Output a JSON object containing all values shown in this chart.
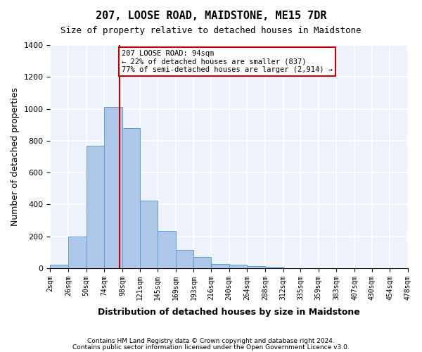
{
  "title": "207, LOOSE ROAD, MAIDSTONE, ME15 7DR",
  "subtitle": "Size of property relative to detached houses in Maidstone",
  "xlabel": "Distribution of detached houses by size in Maidstone",
  "ylabel": "Number of detached properties",
  "bar_color": "#aec6e8",
  "bar_edge_color": "#5a9fd4",
  "bar_counts": [
    20,
    200,
    770,
    1010,
    880,
    425,
    235,
    115,
    70,
    25,
    20,
    12,
    10,
    0,
    0,
    0,
    0,
    0,
    0,
    0
  ],
  "bin_labels": [
    "2sqm",
    "26sqm",
    "50sqm",
    "74sqm",
    "98sqm",
    "121sqm",
    "145sqm",
    "169sqm",
    "193sqm",
    "216sqm",
    "240sqm",
    "264sqm",
    "288sqm",
    "312sqm",
    "335sqm",
    "359sqm",
    "383sqm",
    "407sqm",
    "430sqm",
    "454sqm",
    "478sqm"
  ],
  "bin_edges": [
    2,
    26,
    50,
    74,
    98,
    121,
    145,
    169,
    193,
    216,
    240,
    264,
    288,
    312,
    335,
    359,
    383,
    407,
    430,
    454,
    478
  ],
  "property_value": 94,
  "vline_color": "#cc0000",
  "annotation_text": "207 LOOSE ROAD: 94sqm\n← 22% of detached houses are smaller (837)\n77% of semi-detached houses are larger (2,914) →",
  "annotation_box_color": "#cc0000",
  "ylim": [
    0,
    1400
  ],
  "yticks": [
    0,
    200,
    400,
    600,
    800,
    1000,
    1200,
    1400
  ],
  "background_color": "#eef3fb",
  "grid_color": "#ffffff",
  "footer_line1": "Contains HM Land Registry data © Crown copyright and database right 2024.",
  "footer_line2": "Contains public sector information licensed under the Open Government Licence v3.0."
}
